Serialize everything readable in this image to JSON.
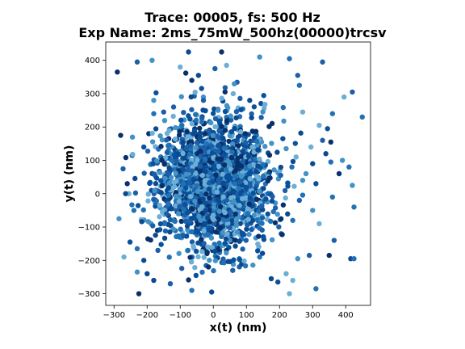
{
  "chart_data": {
    "type": "scatter",
    "title_line1": "Trace: 00005, fs: 500 Hz",
    "title_line2": "Exp Name: 2ms_75mW_500hz(00000)trcsv",
    "xlabel": "x(t) (nm)",
    "ylabel": "y(t) (nm)",
    "xlim": [
      -325,
      475
    ],
    "ylim": [
      -335,
      455
    ],
    "xticks": [
      -300,
      -200,
      -100,
      0,
      100,
      200,
      300,
      400
    ],
    "yticks": [
      -300,
      -200,
      -100,
      0,
      100,
      200,
      300,
      400
    ],
    "grid": false,
    "colormap": "Blues",
    "colors": [
      "#08306b",
      "#08519c",
      "#2171b5",
      "#4292c6",
      "#6baed6",
      "#0b4a8f",
      "#1c5fa8"
    ],
    "core": {
      "center": [
        0,
        30
      ],
      "sigma": [
        85,
        95
      ],
      "count": 2200
    },
    "points": [
      [
        -290,
        365
      ],
      [
        -280,
        175
      ],
      [
        -285,
        -75
      ],
      [
        -270,
        -190
      ],
      [
        -230,
        395
      ],
      [
        -225,
        -300
      ],
      [
        -185,
        400
      ],
      [
        -180,
        280
      ],
      [
        -100,
        380
      ],
      [
        -75,
        425
      ],
      [
        -65,
        340
      ],
      [
        -45,
        355
      ],
      [
        5,
        375
      ],
      [
        25,
        425
      ],
      [
        40,
        385
      ],
      [
        140,
        410
      ],
      [
        230,
        405
      ],
      [
        255,
        355
      ],
      [
        260,
        325
      ],
      [
        330,
        395
      ],
      [
        420,
        305
      ],
      [
        395,
        290
      ],
      [
        450,
        230
      ],
      [
        420,
        25
      ],
      [
        425,
        -40
      ],
      [
        360,
        240
      ],
      [
        320,
        205
      ],
      [
        345,
        195
      ],
      [
        355,
        155
      ],
      [
        340,
        120
      ],
      [
        355,
        95
      ],
      [
        380,
        60
      ],
      [
        390,
        100
      ],
      [
        410,
        80
      ],
      [
        320,
        -90
      ],
      [
        365,
        -140
      ],
      [
        350,
        -185
      ],
      [
        415,
        -195
      ],
      [
        425,
        -195
      ],
      [
        310,
        -285
      ],
      [
        290,
        -185
      ],
      [
        255,
        -195
      ],
      [
        220,
        -240
      ],
      [
        240,
        -260
      ],
      [
        230,
        -300
      ],
      [
        195,
        -265
      ],
      [
        -130,
        -270
      ],
      [
        -180,
        -260
      ],
      [
        -230,
        -235
      ],
      [
        -5,
        -295
      ],
      [
        -65,
        -290
      ],
      [
        270,
        245
      ],
      [
        295,
        140
      ],
      [
        300,
        90
      ],
      [
        280,
        60
      ],
      [
        210,
        165
      ],
      [
        220,
        135
      ],
      [
        250,
        110
      ],
      [
        270,
        40
      ],
      [
        260,
        -20
      ],
      [
        240,
        -80
      ],
      [
        205,
        -120
      ],
      [
        -245,
        115
      ],
      [
        -260,
        30
      ],
      [
        -255,
        0
      ],
      [
        -240,
        -50
      ],
      [
        -230,
        -165
      ],
      [
        -210,
        -200
      ],
      [
        -200,
        -240
      ],
      [
        -210,
        140
      ],
      [
        -195,
        180
      ],
      [
        -180,
        240
      ],
      [
        -150,
        245
      ],
      [
        -265,
        0
      ],
      [
        300,
        -50
      ],
      [
        310,
        30
      ],
      [
        360,
        -10
      ],
      [
        330,
        160
      ],
      [
        175,
        -255
      ],
      [
        140,
        -190
      ],
      [
        110,
        280
      ],
      [
        60,
        300
      ],
      [
        -30,
        290
      ],
      [
        -120,
        260
      ],
      [
        200,
        55
      ]
    ]
  }
}
